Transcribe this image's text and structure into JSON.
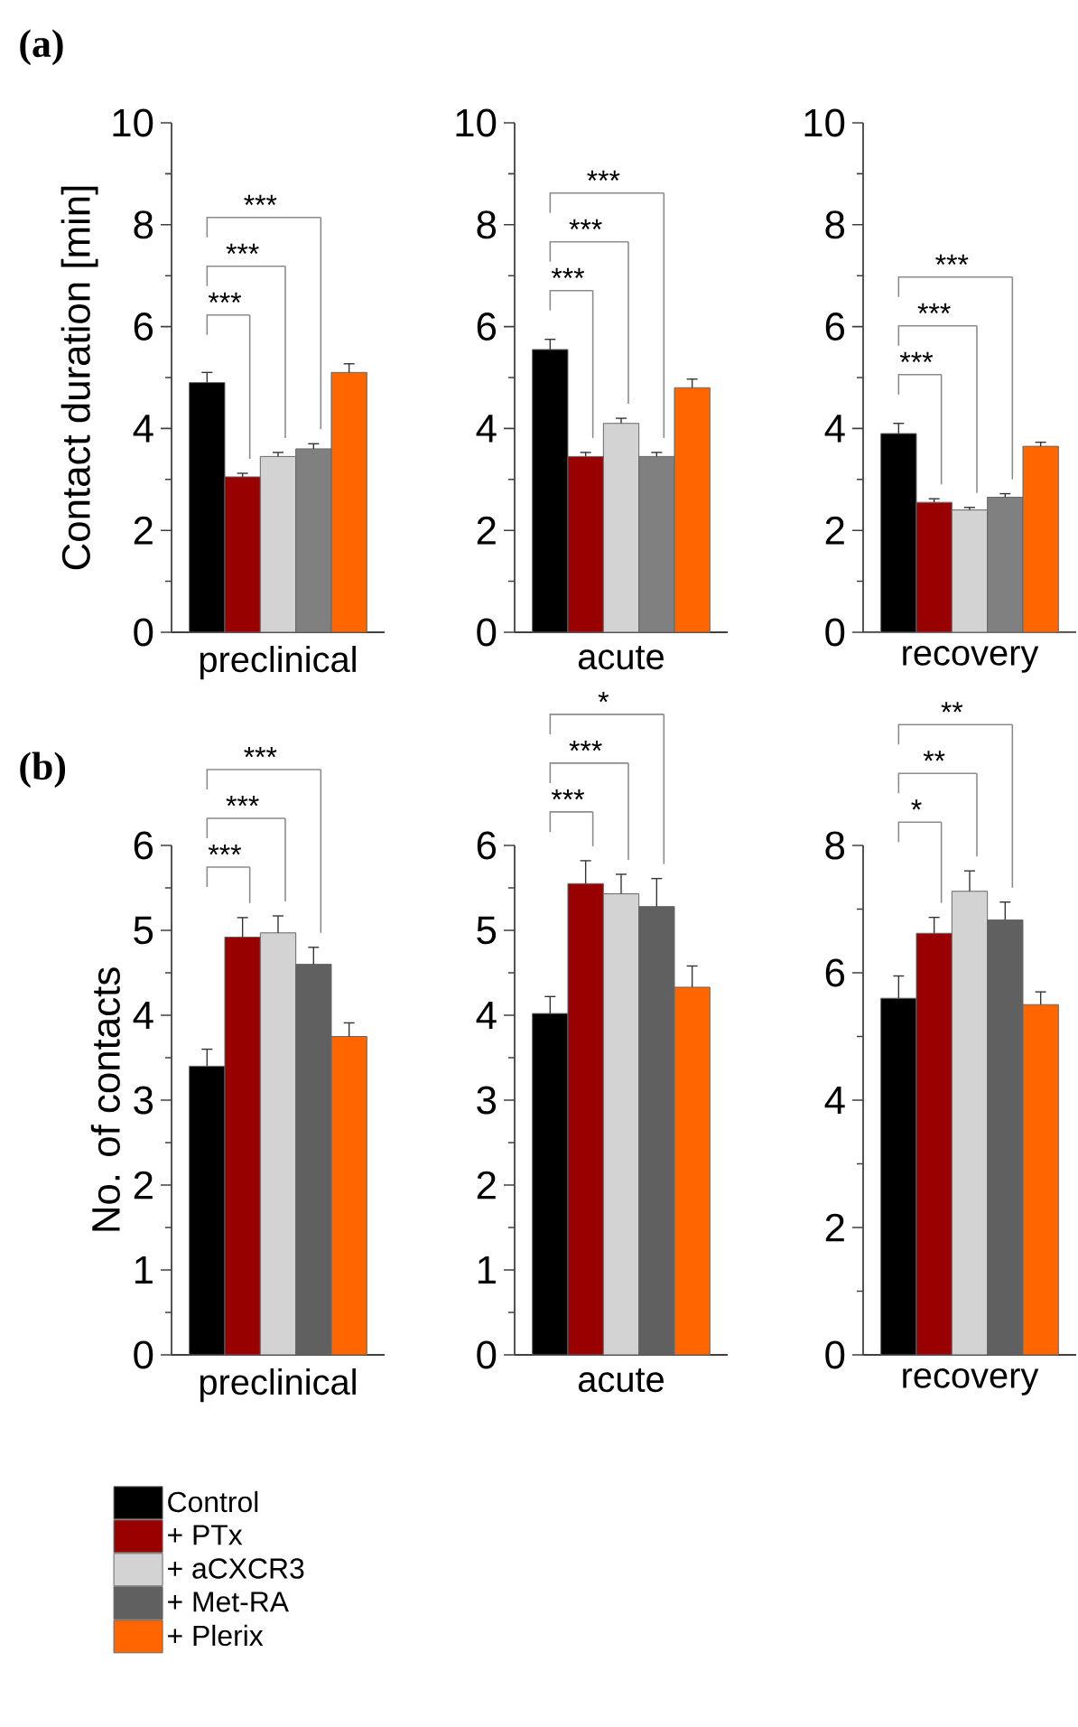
{
  "chart_data": [
    {
      "type": "bar",
      "title": "(a)",
      "xlabel": "preclinical",
      "ylabel": "Contact duration [min]",
      "categories": [
        null
      ],
      "ylim": [
        0,
        10
      ],
      "yticks": [
        0,
        {
          "value": 1,
          "label": null
        },
        2,
        {
          "value": 3,
          "label": null
        },
        4,
        {
          "value": 5,
          "label": null
        },
        6,
        {
          "value": 7,
          "label": null
        },
        8,
        {
          "value": 9,
          "label": null
        },
        10
      ],
      "series": [
        {
          "color": "#000000",
          "values": [
            4.9
          ],
          "errors": [
            0.2
          ]
        },
        {
          "color": "#990000",
          "values": [
            3.05
          ],
          "errors": [
            0.07
          ]
        },
        {
          "color": "#d3d3d3",
          "values": [
            3.45
          ],
          "errors": [
            0.08
          ]
        },
        {
          "color": "#808080",
          "values": [
            3.6
          ],
          "errors": [
            0.1
          ]
        },
        {
          "color": "#ff6600",
          "values": [
            5.1
          ],
          "errors": [
            0.17
          ]
        }
      ],
      "annotations": [
        "***",
        "***",
        "***"
      ]
    },
    {
      "type": "bar",
      "xlabel": "acute",
      "categories": [
        null
      ],
      "ylim": [
        0,
        10
      ],
      "yticks": [
        0,
        {
          "value": 1,
          "label": null
        },
        2,
        {
          "value": 3,
          "label": null
        },
        4,
        {
          "value": 5,
          "label": null
        },
        6,
        {
          "value": 7,
          "label": null
        },
        8,
        {
          "value": 9,
          "label": null
        },
        10
      ],
      "series": [
        {
          "color": "#000000",
          "values": [
            5.55
          ],
          "errors": [
            0.2
          ]
        },
        {
          "color": "#990000",
          "values": [
            3.45
          ],
          "errors": [
            0.08
          ]
        },
        {
          "color": "#d3d3d3",
          "values": [
            4.1
          ],
          "errors": [
            0.1
          ]
        },
        {
          "color": "#808080",
          "values": [
            3.45
          ],
          "errors": [
            0.08
          ]
        },
        {
          "color": "#ff6600",
          "values": [
            4.8
          ],
          "errors": [
            0.17
          ]
        }
      ],
      "annotations": [
        "***",
        "***",
        "***"
      ]
    },
    {
      "type": "bar",
      "xlabel": "recovery",
      "categories": [
        null
      ],
      "ylim": [
        0,
        10
      ],
      "yticks": [
        0,
        {
          "value": 1,
          "label": null
        },
        2,
        {
          "value": 3,
          "label": null
        },
        4,
        {
          "value": 5,
          "label": null
        },
        6,
        {
          "value": 7,
          "label": null
        },
        8,
        {
          "value": 9,
          "label": null
        },
        10
      ],
      "series": [
        {
          "color": "#000000",
          "values": [
            3.9
          ],
          "errors": [
            0.2
          ]
        },
        {
          "color": "#990000",
          "values": [
            2.55
          ],
          "errors": [
            0.07
          ]
        },
        {
          "color": "#d3d3d3",
          "values": [
            2.4
          ],
          "errors": [
            0.05
          ]
        },
        {
          "color": "#808080",
          "values": [
            2.65
          ],
          "errors": [
            0.07
          ]
        },
        {
          "color": "#ff6600",
          "values": [
            3.65
          ],
          "errors": [
            0.08
          ]
        }
      ],
      "annotations": [
        "***",
        "***",
        "***"
      ]
    },
    {
      "type": "bar",
      "title": "(b)",
      "xlabel": "preclinical",
      "ylabel": "No. of contacts",
      "categories": [
        null
      ],
      "ylim": [
        0,
        6
      ],
      "yticks": [
        0,
        {
          "value": 0.5,
          "label": null
        },
        1,
        {
          "value": 1.5,
          "label": null
        },
        2,
        {
          "value": 2.5,
          "label": null
        },
        3,
        {
          "value": 3.5,
          "label": null
        },
        4,
        {
          "value": 4.5,
          "label": null
        },
        5,
        {
          "value": 5.5,
          "label": null
        },
        6
      ],
      "legend": "bottom",
      "series": [
        {
          "name": "Control",
          "color": "#000000",
          "values": [
            3.4
          ],
          "errors": [
            0.2
          ]
        },
        {
          "name": "+ PTx",
          "color": "#990000",
          "values": [
            4.92
          ],
          "errors": [
            0.23
          ]
        },
        {
          "name": "+ aCXCR3",
          "color": "#d3d3d3",
          "values": [
            4.97
          ],
          "errors": [
            0.2
          ]
        },
        {
          "name": "+ Met-RA",
          "color": "#606060",
          "values": [
            4.6
          ],
          "errors": [
            0.2
          ]
        },
        {
          "name": "+ Plerix",
          "color": "#ff6600",
          "values": [
            3.75
          ],
          "errors": [
            0.16
          ]
        }
      ],
      "annotations": [
        "***",
        "***",
        "***"
      ]
    },
    {
      "type": "bar",
      "xlabel": "acute",
      "categories": [
        null
      ],
      "ylim": [
        0,
        6
      ],
      "yticks": [
        0,
        {
          "value": 0.5,
          "label": null
        },
        1,
        {
          "value": 1.5,
          "label": null
        },
        2,
        {
          "value": 2.5,
          "label": null
        },
        3,
        {
          "value": 3.5,
          "label": null
        },
        4,
        {
          "value": 4.5,
          "label": null
        },
        5,
        {
          "value": 5.5,
          "label": null
        },
        6
      ],
      "series": [
        {
          "color": "#000000",
          "values": [
            4.02
          ],
          "errors": [
            0.2
          ]
        },
        {
          "color": "#990000",
          "values": [
            5.55
          ],
          "errors": [
            0.27
          ]
        },
        {
          "color": "#d3d3d3",
          "values": [
            5.43
          ],
          "errors": [
            0.23
          ]
        },
        {
          "color": "#606060",
          "values": [
            5.28
          ],
          "errors": [
            0.33
          ]
        },
        {
          "color": "#ff6600",
          "values": [
            4.33
          ],
          "errors": [
            0.25
          ]
        }
      ],
      "annotations": [
        "***",
        "***",
        "*"
      ]
    },
    {
      "type": "bar",
      "xlabel": "recovery",
      "categories": [
        null
      ],
      "ylim": [
        0,
        8
      ],
      "yticks": [
        0,
        {
          "value": 1,
          "label": null
        },
        2,
        {
          "value": 3,
          "label": null
        },
        4,
        {
          "value": 5,
          "label": null
        },
        6,
        {
          "value": 7,
          "label": null
        },
        8
      ],
      "series": [
        {
          "color": "#000000",
          "values": [
            5.6
          ],
          "errors": [
            0.35
          ]
        },
        {
          "color": "#990000",
          "values": [
            6.62
          ],
          "errors": [
            0.25
          ]
        },
        {
          "color": "#d3d3d3",
          "values": [
            7.28
          ],
          "errors": [
            0.32
          ]
        },
        {
          "color": "#606060",
          "values": [
            6.83
          ],
          "errors": [
            0.28
          ]
        },
        {
          "color": "#ff6600",
          "values": [
            5.5
          ],
          "errors": [
            0.2
          ]
        }
      ],
      "annotations": [
        "*",
        "**",
        "**"
      ]
    }
  ]
}
